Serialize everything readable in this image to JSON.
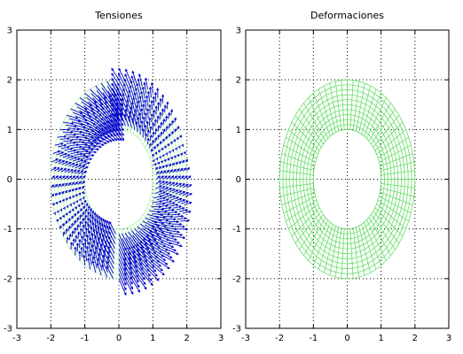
{
  "chart_data": [
    {
      "type": "vector-field",
      "title": "Tensiones",
      "xlim": [
        -3,
        3
      ],
      "ylim": [
        -3,
        3
      ],
      "xticks": [
        -3,
        -2,
        -1,
        0,
        1,
        2,
        3
      ],
      "yticks": [
        -3,
        -2,
        -1,
        0,
        1,
        2,
        3
      ],
      "grid": true,
      "domain": {
        "shape": "annulus",
        "inner_radius": 1,
        "outer_radius": 2,
        "center": [
          0,
          0
        ]
      },
      "mesh": {
        "radial_divisions": 10,
        "angular_divisions": 72
      },
      "series": [
        {
          "role": "mesh",
          "color": "#b8f0b8"
        },
        {
          "role": "stress-vectors",
          "color": "#0000cc",
          "arrow_scale": 0.35
        }
      ]
    },
    {
      "type": "mesh",
      "title": "Deformaciones",
      "xlim": [
        -3,
        3
      ],
      "ylim": [
        -3,
        3
      ],
      "xticks": [
        -3,
        -2,
        -1,
        0,
        1,
        2,
        3
      ],
      "yticks": [
        -3,
        -2,
        -1,
        0,
        1,
        2,
        3
      ],
      "grid": true,
      "domain": {
        "shape": "annulus",
        "inner_radius": 1,
        "outer_radius": 2,
        "center": [
          0,
          0
        ]
      },
      "mesh": {
        "radial_divisions": 10,
        "angular_divisions": 72
      },
      "series": [
        {
          "role": "mesh",
          "color": "#66dd66"
        }
      ]
    }
  ]
}
